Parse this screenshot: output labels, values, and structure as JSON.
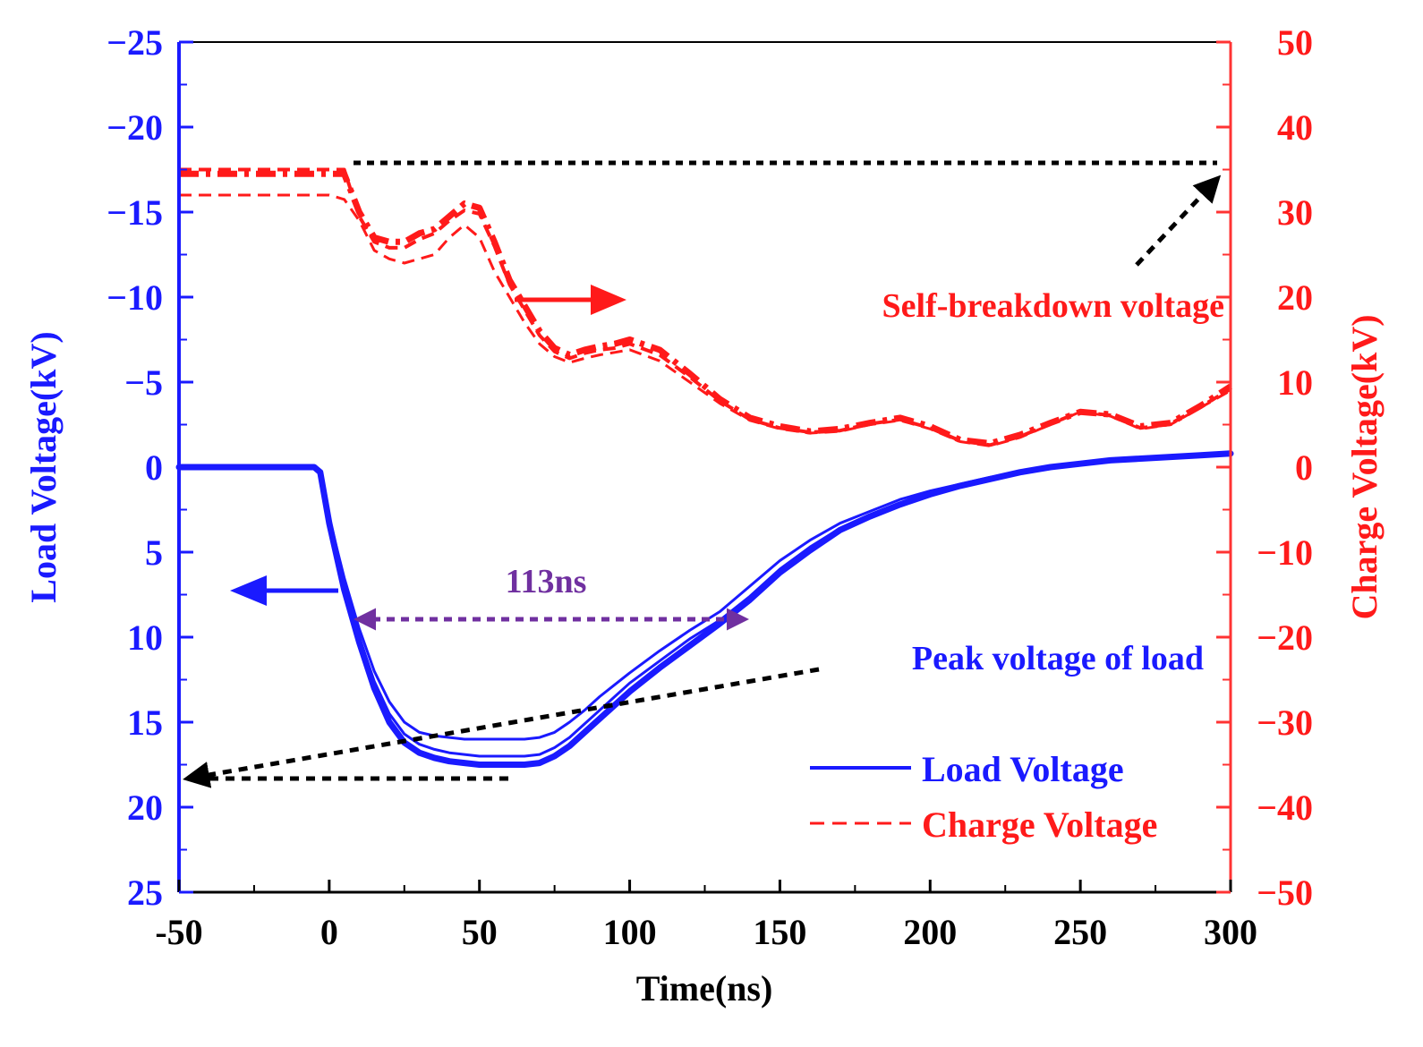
{
  "chart_data": {
    "type": "line",
    "xlabel": "Time(ns)",
    "ylabel_left": "Load Voltage(kV)",
    "ylabel_right": "Charge Voltage(kV)",
    "xlim": [
      -50,
      300
    ],
    "ylim_left": [
      25,
      -25
    ],
    "ylim_right": [
      -50,
      50
    ],
    "left_axis_inverted": true,
    "x_ticks": [
      -50,
      0,
      50,
      100,
      150,
      200,
      250,
      300
    ],
    "x_tick_labels": [
      "-50",
      "0",
      "50",
      "100",
      "150",
      "200",
      "250",
      "300"
    ],
    "y_left_ticks": [
      -25,
      -20,
      -15,
      -10,
      -5,
      0,
      5,
      10,
      15,
      20,
      25
    ],
    "y_left_tick_labels": [
      "−25",
      "−20",
      "−15",
      "−10",
      "−5",
      "0",
      "5",
      "10",
      "15",
      "20",
      "25"
    ],
    "y_right_ticks": [
      50,
      40,
      30,
      20,
      10,
      0,
      -10,
      -20,
      -30,
      -40,
      -50
    ],
    "y_right_tick_labels": [
      "50",
      "40",
      "30",
      "20",
      "10",
      "0",
      "−10",
      "−20",
      "−30",
      "−40",
      "−50"
    ],
    "grid": false,
    "legend_position": "lower-right",
    "legend": [
      {
        "label": "Load Voltage",
        "style": "solid",
        "color": "#1a1aff"
      },
      {
        "label": "Charge Voltage",
        "style": "dashed",
        "color": "#ff1a1a"
      }
    ],
    "colors": {
      "load": "#1a1aff",
      "charge": "#ff1a1a",
      "annotation": "#000000",
      "width_marker": "#7030a0",
      "left_axis": "#1a1aff",
      "right_axis": "#ff3333"
    },
    "annotations": [
      {
        "text": "113ns",
        "color": "#7030a0"
      },
      {
        "text": "Self-breakdown voltage",
        "color": "#ff1a1a"
      },
      {
        "text": "Peak voltage of load",
        "color": "#1a1aff"
      }
    ],
    "load_series": [
      {
        "name": "Load Voltage",
        "width": 3,
        "x": [
          -50,
          -5,
          -3,
          0,
          5,
          10,
          15,
          20,
          25,
          30,
          35,
          40,
          45,
          50,
          55,
          60,
          65,
          70,
          75,
          80,
          85,
          90,
          95,
          100,
          110,
          120,
          130,
          140,
          150,
          160,
          170,
          180,
          190,
          200,
          210,
          220,
          230,
          240,
          250,
          260,
          270,
          280,
          290,
          300
        ],
        "y": [
          0,
          0,
          0.3,
          3,
          6.5,
          9.5,
          12,
          13.8,
          15,
          15.6,
          15.8,
          15.9,
          16,
          16,
          16,
          16,
          16,
          15.9,
          15.6,
          15,
          14.3,
          13.5,
          12.8,
          12.1,
          10.8,
          9.6,
          8.5,
          7,
          5.5,
          4.3,
          3.3,
          2.6,
          1.9,
          1.4,
          1,
          0.6,
          0.3,
          0,
          -0.2,
          -0.4,
          -0.5,
          -0.6,
          -0.7,
          -0.8
        ]
      },
      {
        "name": "Load Voltage",
        "width": 3,
        "x": [
          -50,
          -5,
          -3,
          0,
          5,
          10,
          15,
          20,
          25,
          30,
          35,
          40,
          45,
          50,
          55,
          60,
          65,
          70,
          75,
          80,
          85,
          90,
          95,
          100,
          110,
          120,
          130,
          140,
          150,
          160,
          170,
          180,
          190,
          200,
          210,
          220,
          230,
          240,
          250,
          260,
          270,
          280,
          290,
          300
        ],
        "y": [
          0,
          0,
          0.3,
          3.2,
          7,
          10,
          12.6,
          14.5,
          15.7,
          16.3,
          16.6,
          16.8,
          16.9,
          17,
          17,
          17,
          17,
          16.9,
          16.5,
          15.9,
          15.1,
          14.3,
          13.5,
          12.7,
          11.4,
          10.1,
          9,
          7.6,
          6,
          4.7,
          3.6,
          2.8,
          2.1,
          1.5,
          1.1,
          0.7,
          0.3,
          0,
          -0.2,
          -0.4,
          -0.5,
          -0.6,
          -0.7,
          -0.8
        ]
      },
      {
        "name": "Load Voltage",
        "width": 7,
        "x": [
          -50,
          -5,
          -3,
          0,
          5,
          10,
          15,
          20,
          25,
          30,
          35,
          40,
          45,
          50,
          55,
          60,
          65,
          70,
          75,
          80,
          85,
          90,
          95,
          100,
          110,
          120,
          130,
          140,
          150,
          160,
          170,
          180,
          190,
          200,
          210,
          220,
          230,
          240,
          250,
          260,
          270,
          280,
          290,
          300
        ],
        "y": [
          0,
          0,
          0.3,
          3.3,
          7.2,
          10.3,
          13,
          15,
          16.2,
          16.8,
          17.1,
          17.3,
          17.4,
          17.5,
          17.5,
          17.5,
          17.5,
          17.4,
          17,
          16.4,
          15.6,
          14.8,
          14,
          13.2,
          11.8,
          10.5,
          9.2,
          7.8,
          6.2,
          4.9,
          3.7,
          2.9,
          2.2,
          1.6,
          1.1,
          0.7,
          0.3,
          0,
          -0.2,
          -0.4,
          -0.5,
          -0.6,
          -0.7,
          -0.8
        ]
      }
    ],
    "charge_series": [
      {
        "name": "Charge Voltage",
        "style": "dashed",
        "width": 3,
        "x": [
          -50,
          -20,
          0,
          5,
          10,
          15,
          20,
          25,
          30,
          35,
          40,
          45,
          50,
          55,
          60,
          65,
          70,
          75,
          80,
          85,
          90,
          95,
          100,
          110,
          120,
          130,
          140,
          150,
          160,
          170,
          180,
          190,
          200,
          210,
          220,
          230,
          240,
          250,
          260,
          270,
          280,
          290,
          300
        ],
        "y": [
          32,
          32,
          32,
          31.5,
          29,
          25.5,
          24.5,
          24,
          24.5,
          25,
          27,
          28.5,
          27,
          23,
          20,
          17,
          14.5,
          13,
          12.3,
          12.8,
          13.2,
          13.5,
          13.8,
          12.5,
          10,
          7.5,
          5.5,
          4.5,
          4,
          4.2,
          5,
          5.5,
          4.5,
          3,
          2.5,
          3.5,
          5,
          6.5,
          6,
          4.5,
          5,
          7,
          9
        ]
      },
      {
        "name": "Charge Voltage",
        "style": "dashdot",
        "width": 7,
        "x": [
          -50,
          -20,
          0,
          5,
          10,
          15,
          20,
          25,
          30,
          35,
          40,
          45,
          50,
          55,
          60,
          65,
          70,
          75,
          80,
          85,
          90,
          95,
          100,
          110,
          120,
          130,
          140,
          150,
          160,
          170,
          180,
          190,
          200,
          210,
          220,
          230,
          240,
          250,
          260,
          270,
          280,
          290,
          300
        ],
        "y": [
          34.5,
          34.5,
          34.5,
          34.5,
          30,
          27,
          26.5,
          26.5,
          27.5,
          28,
          29.5,
          31,
          30.5,
          26.5,
          22,
          19,
          16,
          14,
          13.2,
          13.8,
          14.2,
          14.5,
          15,
          13.8,
          11,
          8,
          5.8,
          4.8,
          4.2,
          4.5,
          5.2,
          5.8,
          4.8,
          3.2,
          2.8,
          3.8,
          5.2,
          6.5,
          6.2,
          4.8,
          5.2,
          7.2,
          9.5
        ]
      },
      {
        "name": "Charge Voltage",
        "style": "dashed",
        "width": 4,
        "x": [
          -50,
          -20,
          0,
          5,
          10,
          15,
          20,
          25,
          30,
          35,
          40,
          45,
          50,
          55,
          60,
          65,
          70,
          75,
          80,
          85,
          90,
          95,
          100,
          110,
          120,
          130,
          140,
          150,
          160,
          170,
          180,
          190,
          200,
          210,
          220,
          230,
          240,
          250,
          260,
          270,
          280,
          290,
          300
        ],
        "y": [
          35,
          35,
          35,
          35,
          29.5,
          26.5,
          25.8,
          25.8,
          26.8,
          27.5,
          29,
          30.2,
          29.8,
          26,
          21.5,
          18.5,
          15.5,
          13.6,
          12.8,
          13.4,
          13.8,
          14,
          14.5,
          13.2,
          10.6,
          7.8,
          5.6,
          4.6,
          4.1,
          4.3,
          5.1,
          5.6,
          4.6,
          3.1,
          2.6,
          3.6,
          5.1,
          6.5,
          6.1,
          4.6,
          5.1,
          7.1,
          9.2
        ]
      }
    ]
  }
}
